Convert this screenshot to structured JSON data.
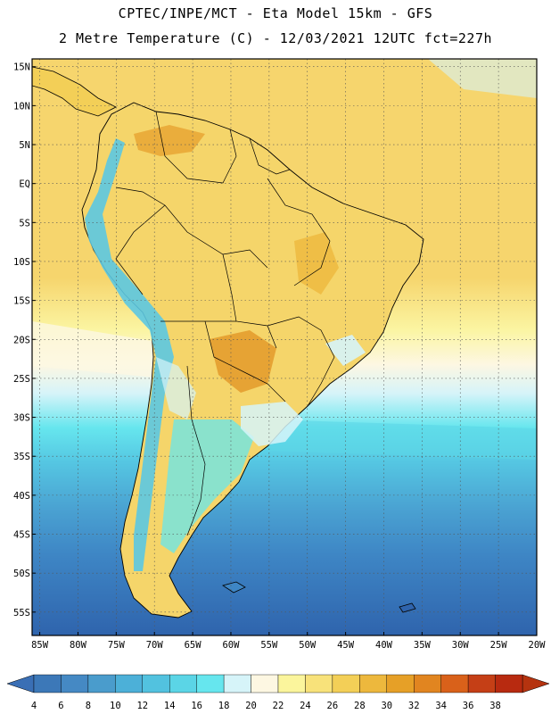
{
  "header": {
    "line1": "CPTEC/INPE/MCT -  Eta Model 15km - GFS",
    "line2": "2 Metre Temperature (C) - 12/03/2021 12UTC fct=227h"
  },
  "map": {
    "lat_ticks": [
      "15N",
      "10N",
      "5N",
      "EQ",
      "5S",
      "10S",
      "15S",
      "20S",
      "25S",
      "30S",
      "35S",
      "40S",
      "45S",
      "50S",
      "55S"
    ],
    "lon_ticks": [
      "85W",
      "80W",
      "75W",
      "70W",
      "65W",
      "60W",
      "55W",
      "50W",
      "45W",
      "40W",
      "35W",
      "30W",
      "25W",
      "20W"
    ],
    "lat_values": [
      15,
      10,
      5,
      0,
      -5,
      -10,
      -15,
      -20,
      -25,
      -30,
      -35,
      -40,
      -45,
      -50,
      -55
    ],
    "lon_values": [
      -85,
      -80,
      -75,
      -70,
      -65,
      -60,
      -55,
      -50,
      -45,
      -40,
      -35,
      -30,
      -25,
      -20
    ],
    "lon_range": [
      -86,
      -20
    ],
    "lat_range": [
      -58,
      16
    ]
  },
  "colorbar": {
    "labels": [
      "4",
      "6",
      "8",
      "10",
      "12",
      "14",
      "16",
      "18",
      "20",
      "22",
      "24",
      "26",
      "28",
      "30",
      "32",
      "34",
      "36",
      "38"
    ],
    "colors": [
      "#3c78b8",
      "#4589c4",
      "#4a9ccc",
      "#4cb0d8",
      "#52c2df",
      "#5bd5e6",
      "#66e6ee",
      "#d6f4f9",
      "#fdf7e2",
      "#fbf59c",
      "#f8e27a",
      "#f3cf57",
      "#edb83d",
      "#e6a027",
      "#e18520",
      "#d9611a",
      "#c53f16",
      "#b82a10"
    ],
    "low_color": "#3a6fb5",
    "high_color": "#b5330f"
  },
  "legend_colors": {
    "ocean_warm": "#f6d56d",
    "ocean_mid": "#fbf5a2",
    "ocean_cool": "#55c6e2",
    "ocean_cold": "#3e86c5",
    "ocean_coldest": "#2f64ad",
    "land": "#f5d56a",
    "land_hot": "#e8a634",
    "andes": "#5cc8e2"
  }
}
